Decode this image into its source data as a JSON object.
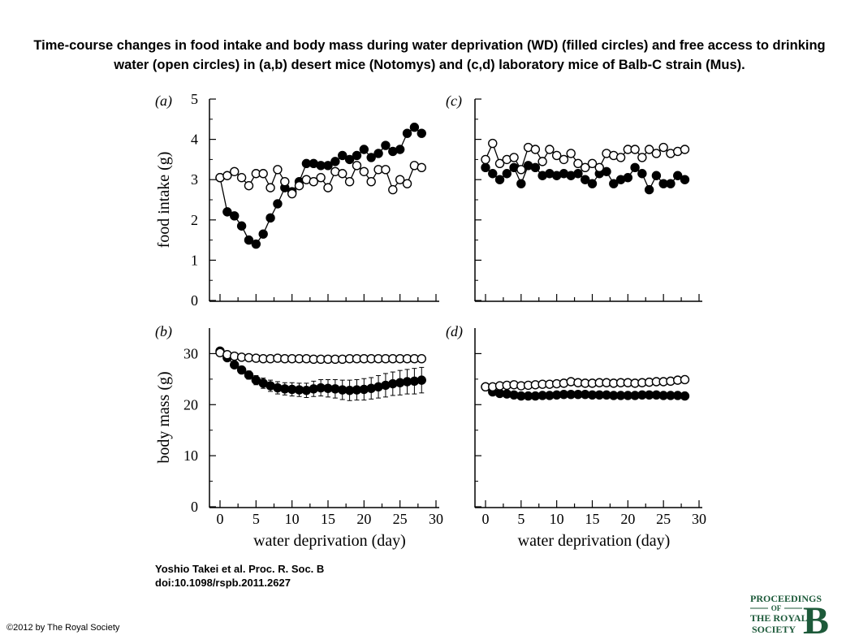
{
  "title": "Time-course changes in food intake and body mass during water deprivation (WD) (filled circles) and free access to drinking water (open circles) in (a,b) desert mice (Notomys) and (c,d) laboratory mice of Balb-C strain (Mus).",
  "citation": {
    "line1": "Yoshio Takei et al. Proc. R. Soc. B",
    "line2": "doi:10.1098/rspb.2011.2627"
  },
  "copyright": "©2012 by The Royal Society",
  "logo": {
    "line1": "PROCEEDINGS",
    "line2": "OF",
    "line3": "THE ROYAL",
    "line4": "SOCIETY",
    "letter": "B",
    "color": "#1d5a3a"
  },
  "chart_data": [
    {
      "type": "scatter",
      "panel_label": "(a)",
      "ylabel": "food intake (g)",
      "xlabel": "",
      "xlim": [
        0,
        30
      ],
      "ylim": [
        0,
        5
      ],
      "yticks": [
        0,
        1,
        2,
        3,
        4,
        5
      ],
      "xticks": [],
      "series": [
        {
          "marker": "filled",
          "x": [
            0,
            1,
            2,
            3,
            4,
            5,
            6,
            7,
            8,
            9,
            10,
            11,
            12,
            13,
            14,
            15,
            16,
            17,
            18,
            19,
            20,
            21,
            22,
            23,
            24,
            25,
            26,
            27,
            28
          ],
          "y": [
            3.05,
            2.2,
            2.1,
            1.85,
            1.5,
            1.4,
            1.65,
            2.05,
            2.4,
            2.8,
            2.7,
            2.95,
            3.4,
            3.4,
            3.35,
            3.35,
            3.45,
            3.6,
            3.5,
            3.6,
            3.75,
            3.55,
            3.65,
            3.85,
            3.7,
            3.75,
            4.15,
            4.3,
            4.15
          ]
        },
        {
          "marker": "open",
          "x": [
            0,
            1,
            2,
            3,
            4,
            5,
            6,
            7,
            8,
            9,
            10,
            11,
            12,
            13,
            14,
            15,
            16,
            17,
            18,
            19,
            20,
            21,
            22,
            23,
            24,
            25,
            26,
            27,
            28
          ],
          "y": [
            3.05,
            3.1,
            3.2,
            3.05,
            2.85,
            3.15,
            3.15,
            2.8,
            3.25,
            2.95,
            2.65,
            2.85,
            3.0,
            2.95,
            3.05,
            2.8,
            3.2,
            3.15,
            2.95,
            3.35,
            3.2,
            2.95,
            3.25,
            3.25,
            2.75,
            3.0,
            2.9,
            3.35,
            3.3
          ]
        }
      ]
    },
    {
      "type": "scatter",
      "panel_label": "(b)",
      "ylabel": "body mass (g)",
      "xlabel": "water deprivation (day)",
      "xlim": [
        0,
        30
      ],
      "ylim": [
        0,
        35
      ],
      "yticks": [
        0,
        10,
        20,
        30
      ],
      "xticks": [
        0,
        5,
        10,
        15,
        20,
        25,
        30
      ],
      "series": [
        {
          "marker": "filled",
          "x": [
            0,
            1,
            2,
            3,
            4,
            5,
            6,
            7,
            8,
            9,
            10,
            11,
            12,
            13,
            14,
            15,
            16,
            17,
            18,
            19,
            20,
            21,
            22,
            23,
            24,
            25,
            26,
            27,
            28
          ],
          "y": [
            30.5,
            29.2,
            27.8,
            26.8,
            25.8,
            24.8,
            24.2,
            23.7,
            23.3,
            23.1,
            23.0,
            22.9,
            22.8,
            23.1,
            23.3,
            23.2,
            23.1,
            22.9,
            22.8,
            22.9,
            23.0,
            23.2,
            23.5,
            23.8,
            24.1,
            24.3,
            24.5,
            24.6,
            24.8
          ],
          "error": [
            0.5,
            0.5,
            0.6,
            0.7,
            0.8,
            0.9,
            1.0,
            1.1,
            1.2,
            1.2,
            1.3,
            1.3,
            1.4,
            1.5,
            1.6,
            1.7,
            1.8,
            1.9,
            2.0,
            2.0,
            2.1,
            2.1,
            2.2,
            2.3,
            2.3,
            2.4,
            2.4,
            2.5,
            2.5
          ]
        },
        {
          "marker": "open",
          "x": [
            0,
            1,
            2,
            3,
            4,
            5,
            6,
            7,
            8,
            9,
            10,
            11,
            12,
            13,
            14,
            15,
            16,
            17,
            18,
            19,
            20,
            21,
            22,
            23,
            24,
            25,
            26,
            27,
            28
          ],
          "y": [
            30.2,
            29.8,
            29.5,
            29.3,
            29.2,
            29.1,
            29.0,
            29.0,
            29.1,
            29.0,
            29.0,
            29.0,
            29.0,
            28.9,
            28.9,
            28.9,
            28.9,
            28.9,
            29.0,
            29.0,
            29.0,
            29.0,
            29.0,
            29.0,
            29.0,
            29.0,
            29.0,
            29.0,
            29.0
          ]
        }
      ]
    },
    {
      "type": "scatter",
      "panel_label": "(c)",
      "ylabel": "",
      "xlabel": "",
      "xlim": [
        0,
        30
      ],
      "ylim": [
        0,
        5
      ],
      "yticks": [],
      "xticks": [],
      "series": [
        {
          "marker": "filled",
          "x": [
            0,
            1,
            2,
            3,
            4,
            5,
            6,
            7,
            8,
            9,
            10,
            11,
            12,
            13,
            14,
            15,
            16,
            17,
            18,
            19,
            20,
            21,
            22,
            23,
            24,
            25,
            26,
            27,
            28
          ],
          "y": [
            3.3,
            3.15,
            3.0,
            3.15,
            3.3,
            2.9,
            3.35,
            3.3,
            3.1,
            3.15,
            3.1,
            3.15,
            3.1,
            3.15,
            3.0,
            2.9,
            3.15,
            3.2,
            2.9,
            3.0,
            3.05,
            3.3,
            3.15,
            2.75,
            3.1,
            2.9,
            2.9,
            3.1,
            3.0
          ]
        },
        {
          "marker": "open",
          "x": [
            0,
            1,
            2,
            3,
            4,
            5,
            6,
            7,
            8,
            9,
            10,
            11,
            12,
            13,
            14,
            15,
            16,
            17,
            18,
            19,
            20,
            21,
            22,
            23,
            24,
            25,
            26,
            27,
            28
          ],
          "y": [
            3.5,
            3.9,
            3.4,
            3.5,
            3.55,
            3.25,
            3.8,
            3.75,
            3.45,
            3.75,
            3.6,
            3.5,
            3.65,
            3.4,
            3.3,
            3.4,
            3.3,
            3.65,
            3.6,
            3.55,
            3.75,
            3.75,
            3.55,
            3.75,
            3.65,
            3.8,
            3.65,
            3.7,
            3.75
          ]
        }
      ]
    },
    {
      "type": "scatter",
      "panel_label": "(d)",
      "ylabel": "",
      "xlabel": "water deprivation (day)",
      "xlim": [
        0,
        30
      ],
      "ylim": [
        0,
        35
      ],
      "yticks": [],
      "xticks": [
        0,
        5,
        10,
        15,
        20,
        25,
        30
      ],
      "series": [
        {
          "marker": "filled",
          "x": [
            0,
            1,
            2,
            3,
            4,
            5,
            6,
            7,
            8,
            9,
            10,
            11,
            12,
            13,
            14,
            15,
            16,
            17,
            18,
            19,
            20,
            21,
            22,
            23,
            24,
            25,
            26,
            27,
            28
          ],
          "y": [
            23.5,
            22.5,
            22.2,
            22.1,
            21.9,
            21.7,
            21.7,
            21.7,
            21.8,
            21.8,
            21.9,
            22.0,
            22.0,
            22.0,
            22.0,
            21.9,
            21.9,
            21.9,
            21.8,
            21.8,
            21.8,
            21.8,
            21.9,
            21.9,
            21.9,
            21.8,
            21.8,
            21.8,
            21.7
          ]
        },
        {
          "marker": "open",
          "x": [
            0,
            1,
            2,
            3,
            4,
            5,
            6,
            7,
            8,
            9,
            10,
            11,
            12,
            13,
            14,
            15,
            16,
            17,
            18,
            19,
            20,
            21,
            22,
            23,
            24,
            25,
            26,
            27,
            28
          ],
          "y": [
            23.5,
            23.5,
            23.7,
            23.8,
            23.9,
            23.7,
            23.8,
            23.9,
            24.0,
            24.0,
            24.1,
            24.2,
            24.5,
            24.3,
            24.2,
            24.2,
            24.3,
            24.3,
            24.2,
            24.3,
            24.3,
            24.2,
            24.3,
            24.4,
            24.5,
            24.5,
            24.6,
            24.8,
            24.9
          ]
        }
      ]
    }
  ]
}
